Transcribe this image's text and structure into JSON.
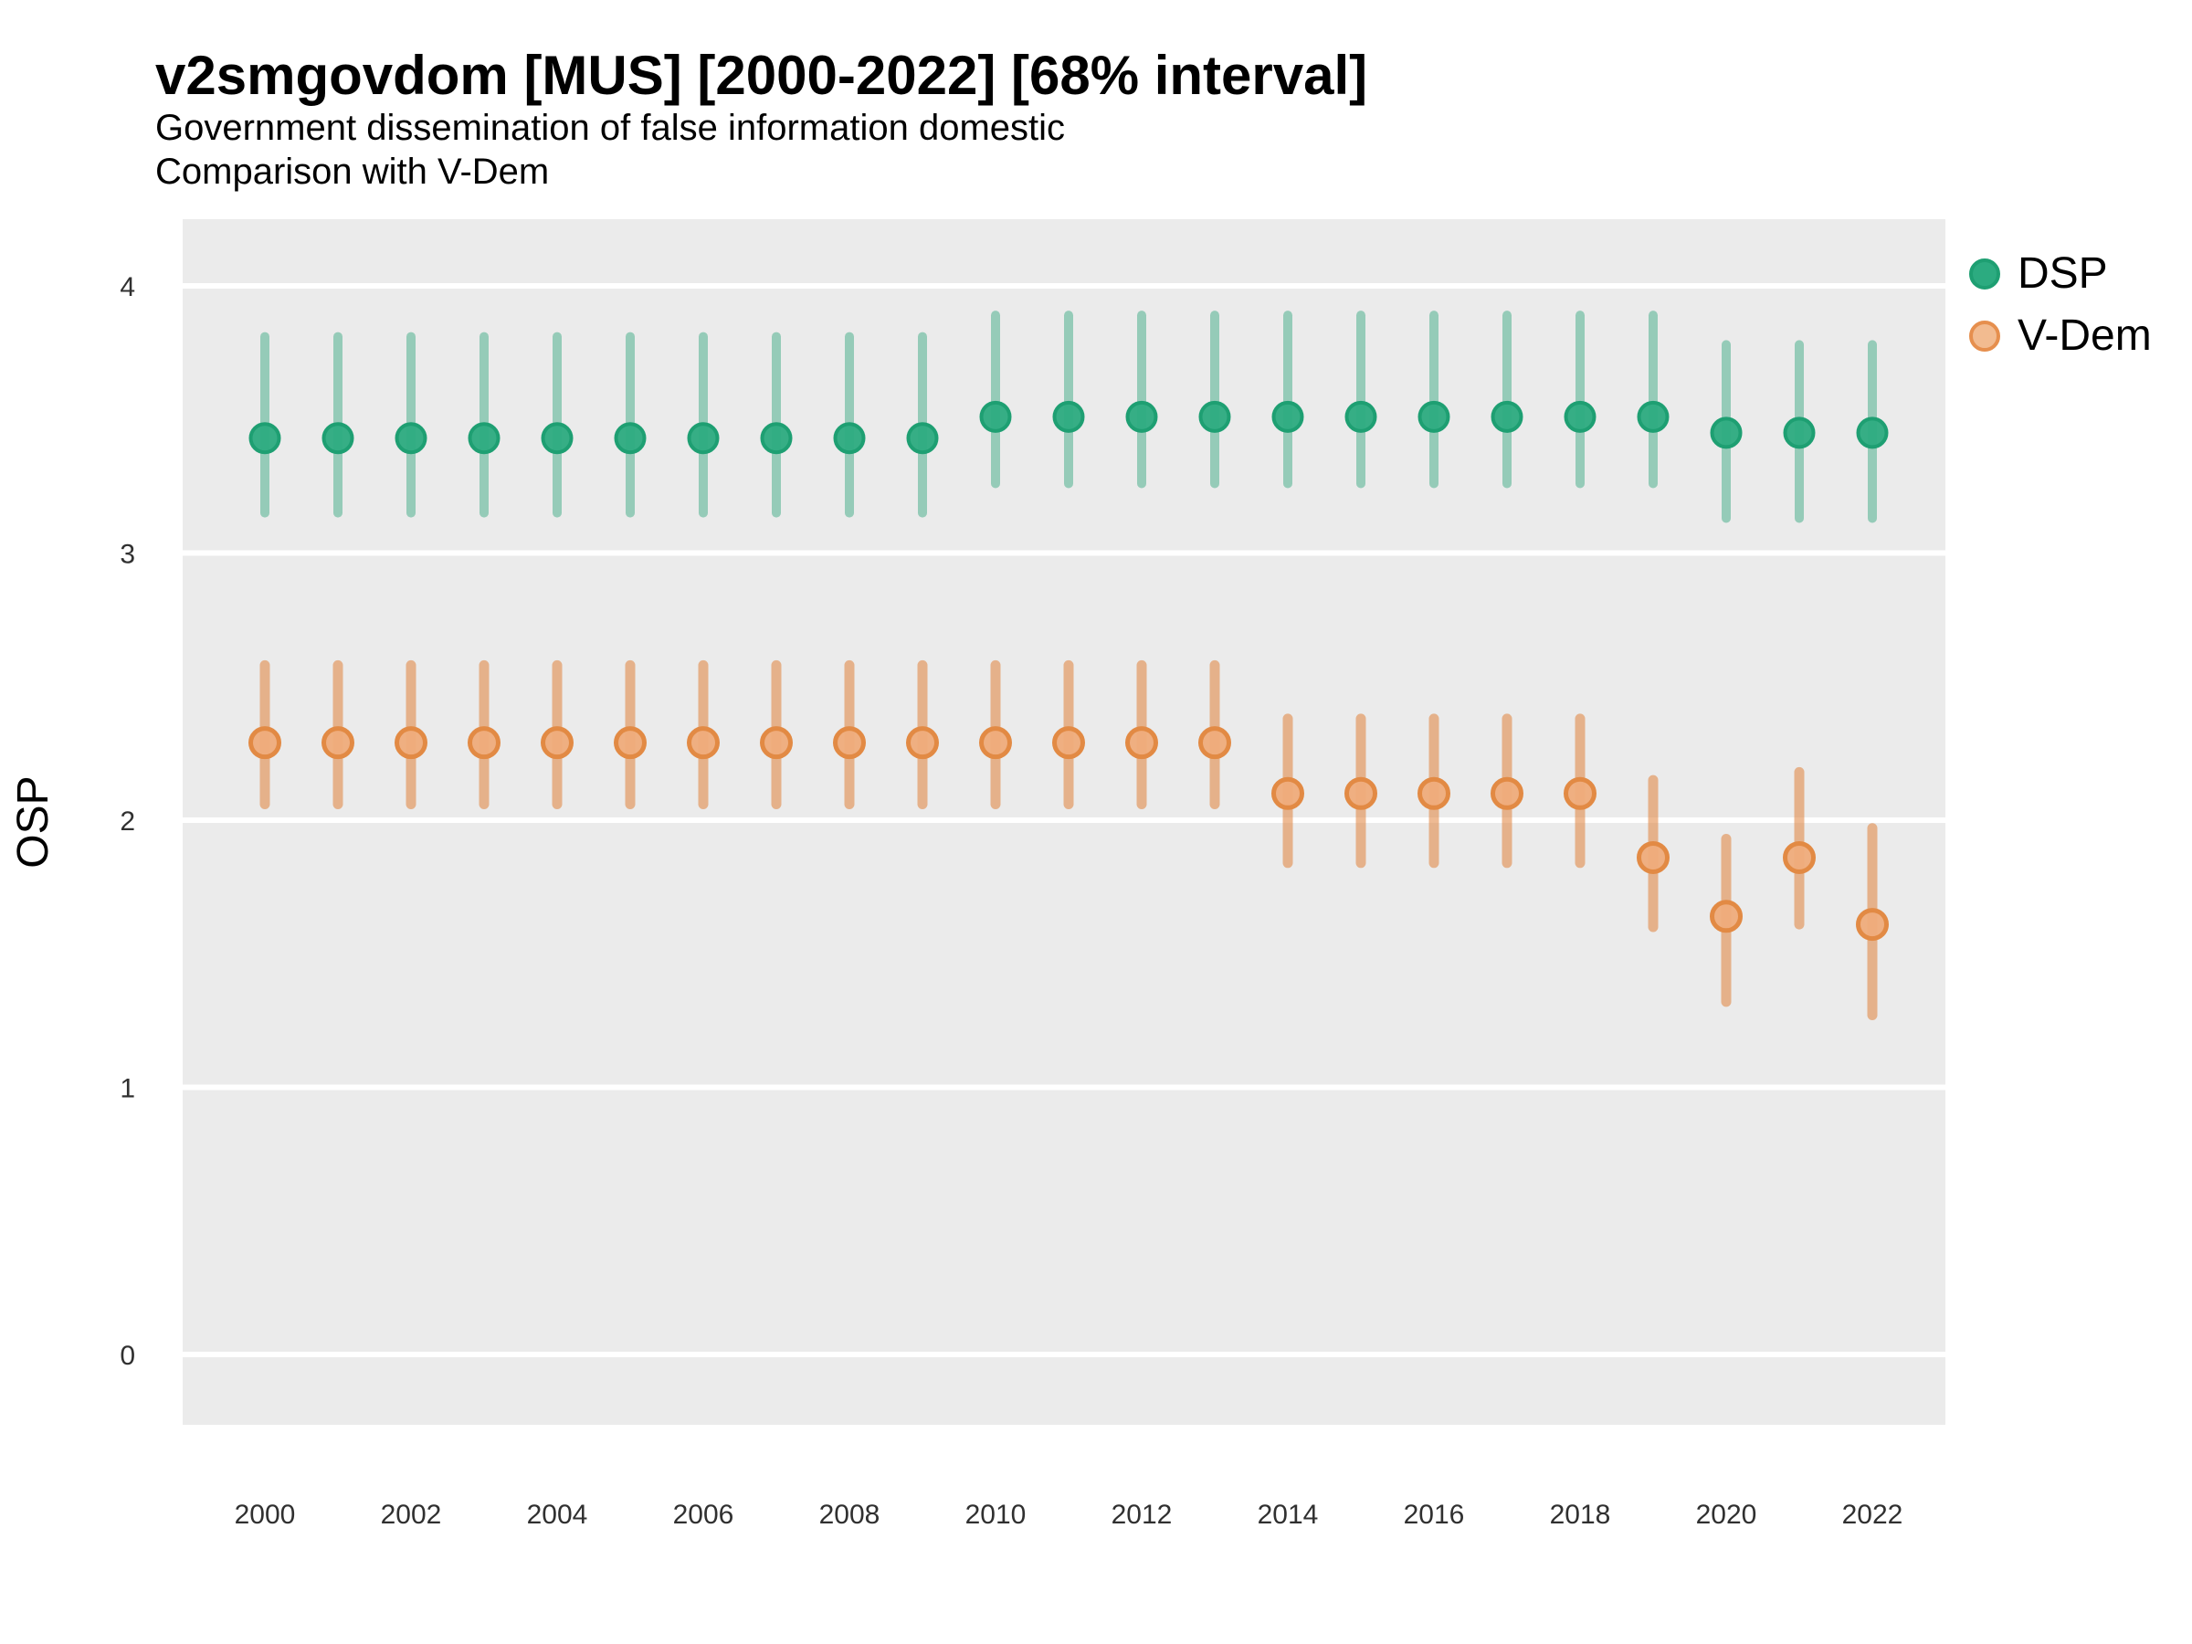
{
  "header": {
    "title": "v2smgovdom [MUS] [2000-2022] [68% interval]",
    "subtitle1": "Government dissemination of false information domestic",
    "subtitle2": "Comparison with V-Dem"
  },
  "legend": {
    "position": "right",
    "items": [
      {
        "label": "DSP",
        "marker_fill": "#2CAB80",
        "marker_stroke": "#1E9F72"
      },
      {
        "label": "V-Dem",
        "marker_fill": "#F2BB90",
        "marker_stroke": "#E68F4E"
      }
    ]
  },
  "chart_data": {
    "type": "scatter",
    "subtype": "pointrange-errorbar",
    "title": "v2smgovdom [MUS] [2000-2022] [68% interval]",
    "subtitle": [
      "Government dissemination of false information domestic",
      "Comparison with V-Dem"
    ],
    "xlabel": "",
    "ylabel": "OSP",
    "ylim": [
      -0.26,
      4.26
    ],
    "y_ticks": [
      0,
      1,
      2,
      3,
      4
    ],
    "x_ticks": [
      2000,
      2002,
      2004,
      2006,
      2008,
      2010,
      2012,
      2014,
      2016,
      2018,
      2020,
      2022
    ],
    "grid": "major-horizontal-white-on-gray",
    "panel_background": "#EBEBEB",
    "gridline_color": "#FFFFFF",
    "interval_level": "68%",
    "series": [
      {
        "name": "DSP",
        "marker_fill": "#2CAB80",
        "marker_stroke": "#1E9F72",
        "bar_color": "rgba(30,160,115,0.42)",
        "points": [
          {
            "year": 2000,
            "est": 3.43,
            "lo": 3.15,
            "hi": 3.81
          },
          {
            "year": 2001,
            "est": 3.43,
            "lo": 3.15,
            "hi": 3.81
          },
          {
            "year": 2002,
            "est": 3.43,
            "lo": 3.15,
            "hi": 3.81
          },
          {
            "year": 2003,
            "est": 3.43,
            "lo": 3.15,
            "hi": 3.81
          },
          {
            "year": 2004,
            "est": 3.43,
            "lo": 3.15,
            "hi": 3.81
          },
          {
            "year": 2005,
            "est": 3.43,
            "lo": 3.15,
            "hi": 3.81
          },
          {
            "year": 2006,
            "est": 3.43,
            "lo": 3.15,
            "hi": 3.81
          },
          {
            "year": 2007,
            "est": 3.43,
            "lo": 3.15,
            "hi": 3.81
          },
          {
            "year": 2008,
            "est": 3.43,
            "lo": 3.15,
            "hi": 3.81
          },
          {
            "year": 2009,
            "est": 3.43,
            "lo": 3.15,
            "hi": 3.81
          },
          {
            "year": 2010,
            "est": 3.51,
            "lo": 3.26,
            "hi": 3.89
          },
          {
            "year": 2011,
            "est": 3.51,
            "lo": 3.26,
            "hi": 3.89
          },
          {
            "year": 2012,
            "est": 3.51,
            "lo": 3.26,
            "hi": 3.89
          },
          {
            "year": 2013,
            "est": 3.51,
            "lo": 3.26,
            "hi": 3.89
          },
          {
            "year": 2014,
            "est": 3.51,
            "lo": 3.26,
            "hi": 3.89
          },
          {
            "year": 2015,
            "est": 3.51,
            "lo": 3.26,
            "hi": 3.89
          },
          {
            "year": 2016,
            "est": 3.51,
            "lo": 3.26,
            "hi": 3.89
          },
          {
            "year": 2017,
            "est": 3.51,
            "lo": 3.26,
            "hi": 3.89
          },
          {
            "year": 2018,
            "est": 3.51,
            "lo": 3.26,
            "hi": 3.89
          },
          {
            "year": 2019,
            "est": 3.51,
            "lo": 3.26,
            "hi": 3.89
          },
          {
            "year": 2020,
            "est": 3.45,
            "lo": 3.13,
            "hi": 3.78
          },
          {
            "year": 2021,
            "est": 3.45,
            "lo": 3.13,
            "hi": 3.78
          },
          {
            "year": 2022,
            "est": 3.45,
            "lo": 3.13,
            "hi": 3.78
          }
        ]
      },
      {
        "name": "V-Dem",
        "marker_fill": "#EFAC7B",
        "marker_stroke": "#E28A44",
        "bar_color": "rgba(224,130,58,0.55)",
        "points": [
          {
            "year": 2000,
            "est": 2.29,
            "lo": 2.06,
            "hi": 2.58
          },
          {
            "year": 2001,
            "est": 2.29,
            "lo": 2.06,
            "hi": 2.58
          },
          {
            "year": 2002,
            "est": 2.29,
            "lo": 2.06,
            "hi": 2.58
          },
          {
            "year": 2003,
            "est": 2.29,
            "lo": 2.06,
            "hi": 2.58
          },
          {
            "year": 2004,
            "est": 2.29,
            "lo": 2.06,
            "hi": 2.58
          },
          {
            "year": 2005,
            "est": 2.29,
            "lo": 2.06,
            "hi": 2.58
          },
          {
            "year": 2006,
            "est": 2.29,
            "lo": 2.06,
            "hi": 2.58
          },
          {
            "year": 2007,
            "est": 2.29,
            "lo": 2.06,
            "hi": 2.58
          },
          {
            "year": 2008,
            "est": 2.29,
            "lo": 2.06,
            "hi": 2.58
          },
          {
            "year": 2009,
            "est": 2.29,
            "lo": 2.06,
            "hi": 2.58
          },
          {
            "year": 2010,
            "est": 2.29,
            "lo": 2.06,
            "hi": 2.58
          },
          {
            "year": 2011,
            "est": 2.29,
            "lo": 2.06,
            "hi": 2.58
          },
          {
            "year": 2012,
            "est": 2.29,
            "lo": 2.06,
            "hi": 2.58
          },
          {
            "year": 2013,
            "est": 2.29,
            "lo": 2.06,
            "hi": 2.58
          },
          {
            "year": 2014,
            "est": 2.1,
            "lo": 1.84,
            "hi": 2.38
          },
          {
            "year": 2015,
            "est": 2.1,
            "lo": 1.84,
            "hi": 2.38
          },
          {
            "year": 2016,
            "est": 2.1,
            "lo": 1.84,
            "hi": 2.38
          },
          {
            "year": 2017,
            "est": 2.1,
            "lo": 1.84,
            "hi": 2.38
          },
          {
            "year": 2018,
            "est": 2.1,
            "lo": 1.84,
            "hi": 2.38
          },
          {
            "year": 2019,
            "est": 1.86,
            "lo": 1.6,
            "hi": 2.15
          },
          {
            "year": 2020,
            "est": 1.64,
            "lo": 1.32,
            "hi": 1.93
          },
          {
            "year": 2021,
            "est": 1.86,
            "lo": 1.61,
            "hi": 2.18
          },
          {
            "year": 2022,
            "est": 1.61,
            "lo": 1.27,
            "hi": 1.97
          }
        ]
      }
    ]
  }
}
